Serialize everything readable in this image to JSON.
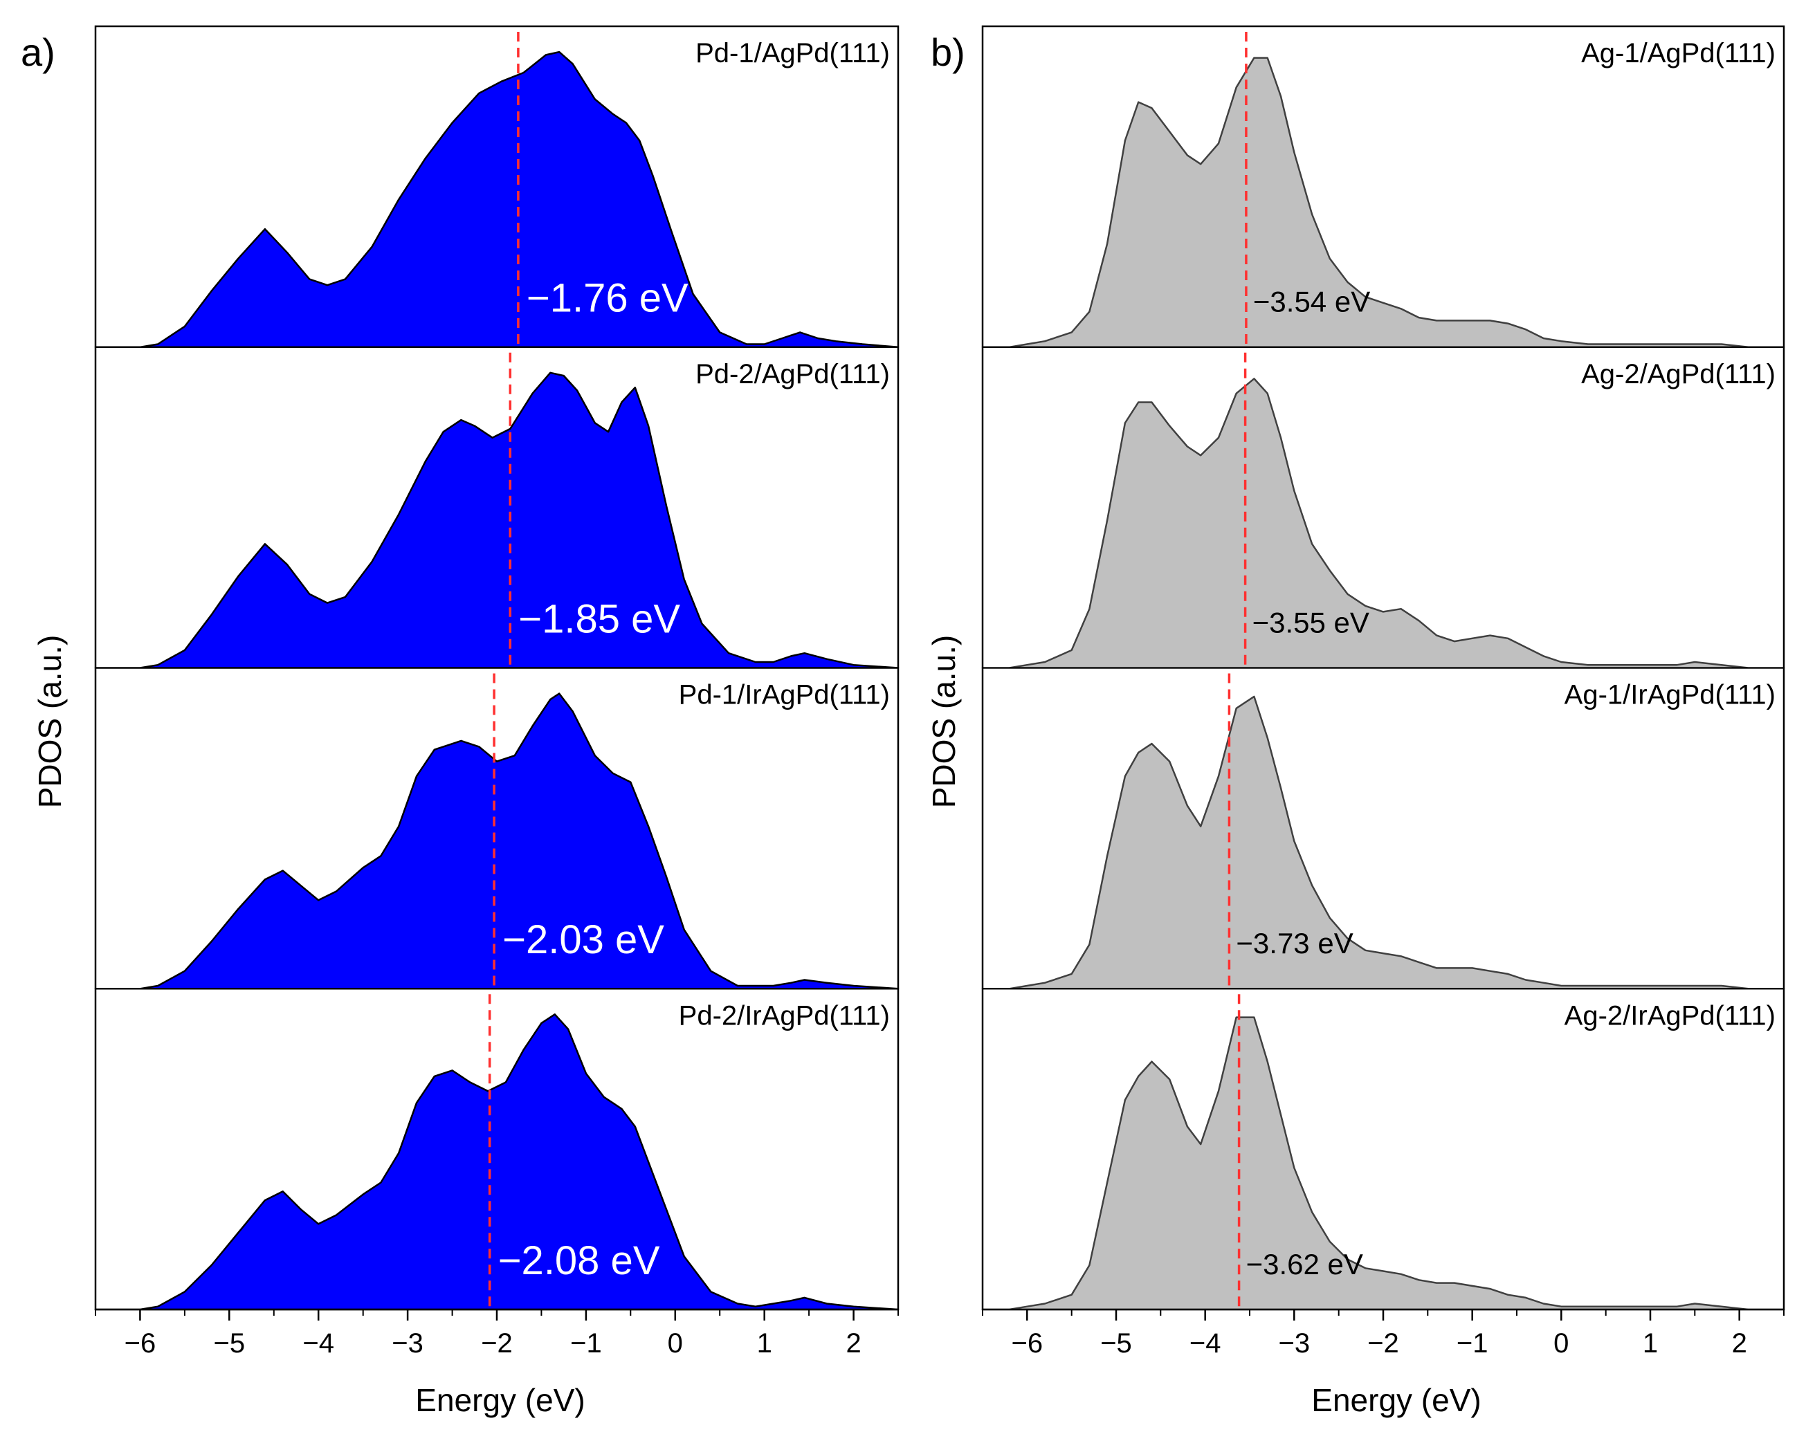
{
  "figure": {
    "panel_a_letter": "a)",
    "panel_b_letter": "b)"
  },
  "chart_data": [
    {
      "type": "area",
      "panel": "a",
      "title": "a)",
      "xlabel": "Energy (eV)",
      "ylabel": "PDOS (a.u.)",
      "xlim": [
        -6.5,
        2.5
      ],
      "xticks": [
        -6,
        -5,
        -4,
        -3,
        -2,
        -1,
        0,
        1,
        2
      ],
      "xtick_labels": [
        "−6",
        "−5",
        "−4",
        "−3",
        "−2",
        "−1",
        "0",
        "1",
        "2"
      ],
      "ylim": [
        0,
        1
      ],
      "fill_color": "#0000ff",
      "stroke_color": "#000000",
      "dashed_line_color": "#ff3030",
      "series": [
        {
          "name": "Pd-1/AgPd(111)",
          "d_band_center": -1.76,
          "annotation": "−1.76 eV",
          "x": [
            -6.5,
            -6.0,
            -5.8,
            -5.5,
            -5.2,
            -4.9,
            -4.6,
            -4.35,
            -4.1,
            -3.9,
            -3.7,
            -3.4,
            -3.1,
            -2.8,
            -2.5,
            -2.2,
            -1.95,
            -1.7,
            -1.45,
            -1.3,
            -1.15,
            -0.9,
            -0.7,
            -0.55,
            -0.4,
            -0.25,
            -0.05,
            0.2,
            0.5,
            0.8,
            1.0,
            1.2,
            1.4,
            1.6,
            1.8,
            2.1,
            2.5
          ],
          "y": [
            0.0,
            0.0,
            0.01,
            0.07,
            0.19,
            0.3,
            0.4,
            0.32,
            0.23,
            0.21,
            0.23,
            0.34,
            0.5,
            0.64,
            0.76,
            0.86,
            0.9,
            0.93,
            0.99,
            1.0,
            0.96,
            0.84,
            0.79,
            0.76,
            0.7,
            0.58,
            0.4,
            0.18,
            0.05,
            0.01,
            0.01,
            0.03,
            0.05,
            0.03,
            0.02,
            0.01,
            0.0
          ]
        },
        {
          "name": "Pd-2/AgPd(111)",
          "d_band_center": -1.85,
          "annotation": "−1.85 eV",
          "x": [
            -6.5,
            -6.0,
            -5.8,
            -5.5,
            -5.2,
            -4.9,
            -4.6,
            -4.35,
            -4.1,
            -3.9,
            -3.7,
            -3.4,
            -3.1,
            -2.8,
            -2.6,
            -2.4,
            -2.25,
            -2.05,
            -1.85,
            -1.6,
            -1.4,
            -1.25,
            -1.1,
            -0.9,
            -0.75,
            -0.6,
            -0.45,
            -0.3,
            -0.1,
            0.1,
            0.3,
            0.6,
            0.9,
            1.1,
            1.3,
            1.45,
            1.7,
            2.0,
            2.5
          ],
          "y": [
            0.0,
            0.0,
            0.01,
            0.06,
            0.18,
            0.31,
            0.42,
            0.35,
            0.25,
            0.22,
            0.24,
            0.36,
            0.52,
            0.7,
            0.8,
            0.84,
            0.82,
            0.78,
            0.81,
            0.93,
            1.0,
            0.99,
            0.94,
            0.83,
            0.8,
            0.9,
            0.95,
            0.82,
            0.55,
            0.3,
            0.15,
            0.05,
            0.02,
            0.02,
            0.04,
            0.05,
            0.03,
            0.01,
            0.0
          ]
        },
        {
          "name": "Pd-1/IrAgPd(111)",
          "d_band_center": -2.03,
          "annotation": "−2.03 eV",
          "x": [
            -6.5,
            -6.0,
            -5.8,
            -5.5,
            -5.2,
            -4.9,
            -4.6,
            -4.4,
            -4.2,
            -4.0,
            -3.8,
            -3.5,
            -3.3,
            -3.1,
            -2.9,
            -2.7,
            -2.4,
            -2.2,
            -2.0,
            -1.8,
            -1.6,
            -1.4,
            -1.3,
            -1.15,
            -0.9,
            -0.7,
            -0.5,
            -0.3,
            -0.1,
            0.1,
            0.4,
            0.7,
            0.9,
            1.1,
            1.3,
            1.45,
            1.7,
            2.0,
            2.5
          ],
          "y": [
            0.0,
            0.0,
            0.01,
            0.06,
            0.16,
            0.27,
            0.37,
            0.4,
            0.35,
            0.3,
            0.33,
            0.41,
            0.45,
            0.55,
            0.72,
            0.81,
            0.84,
            0.82,
            0.77,
            0.79,
            0.89,
            0.98,
            1.0,
            0.94,
            0.79,
            0.73,
            0.7,
            0.55,
            0.38,
            0.2,
            0.06,
            0.01,
            0.01,
            0.01,
            0.02,
            0.03,
            0.02,
            0.01,
            0.0
          ]
        },
        {
          "name": "Pd-2/IrAgPd(111)",
          "d_band_center": -2.08,
          "annotation": "−2.08 eV",
          "x": [
            -6.5,
            -6.0,
            -5.8,
            -5.5,
            -5.2,
            -4.9,
            -4.6,
            -4.4,
            -4.2,
            -4.0,
            -3.8,
            -3.5,
            -3.3,
            -3.1,
            -2.9,
            -2.7,
            -2.5,
            -2.3,
            -2.1,
            -1.9,
            -1.7,
            -1.5,
            -1.35,
            -1.2,
            -1.0,
            -0.8,
            -0.6,
            -0.45,
            -0.3,
            -0.1,
            0.1,
            0.4,
            0.7,
            0.9,
            1.1,
            1.3,
            1.45,
            1.7,
            2.0,
            2.5
          ],
          "y": [
            0.0,
            0.0,
            0.01,
            0.06,
            0.15,
            0.26,
            0.37,
            0.4,
            0.34,
            0.29,
            0.32,
            0.39,
            0.43,
            0.53,
            0.7,
            0.79,
            0.81,
            0.77,
            0.74,
            0.77,
            0.88,
            0.97,
            1.0,
            0.95,
            0.8,
            0.72,
            0.68,
            0.62,
            0.5,
            0.34,
            0.18,
            0.06,
            0.02,
            0.01,
            0.02,
            0.03,
            0.04,
            0.02,
            0.01,
            0.0
          ]
        }
      ]
    },
    {
      "type": "area",
      "panel": "b",
      "title": "b)",
      "xlabel": "Energy (eV)",
      "ylabel": "PDOS (a.u.)",
      "xlim": [
        -6.5,
        2.5
      ],
      "xticks": [
        -6,
        -5,
        -4,
        -3,
        -2,
        -1,
        0,
        1,
        2
      ],
      "xtick_labels": [
        "−6",
        "−5",
        "−4",
        "−3",
        "−2",
        "−1",
        "0",
        "1",
        "2"
      ],
      "ylim": [
        0,
        1
      ],
      "fill_color": "#c0c0c0",
      "stroke_color": "#404040",
      "dashed_line_color": "#ff3030",
      "series": [
        {
          "name": "Ag-1/AgPd(111)",
          "d_band_center": -3.54,
          "annotation": "−3.54 eV",
          "x": [
            -6.5,
            -6.2,
            -6.0,
            -5.8,
            -5.5,
            -5.3,
            -5.1,
            -4.9,
            -4.75,
            -4.6,
            -4.4,
            -4.2,
            -4.05,
            -3.85,
            -3.65,
            -3.45,
            -3.3,
            -3.15,
            -3.0,
            -2.8,
            -2.6,
            -2.4,
            -2.2,
            -2.0,
            -1.8,
            -1.6,
            -1.4,
            -1.2,
            -1.0,
            -0.8,
            -0.6,
            -0.4,
            -0.2,
            0.0,
            0.3,
            0.6,
            0.9,
            1.1,
            1.3,
            1.5,
            1.8,
            2.1,
            2.5
          ],
          "y": [
            0.0,
            0.0,
            0.01,
            0.02,
            0.05,
            0.12,
            0.35,
            0.7,
            0.83,
            0.81,
            0.73,
            0.65,
            0.62,
            0.69,
            0.88,
            0.98,
            0.98,
            0.85,
            0.66,
            0.45,
            0.3,
            0.22,
            0.17,
            0.15,
            0.13,
            0.1,
            0.09,
            0.09,
            0.09,
            0.09,
            0.08,
            0.06,
            0.03,
            0.02,
            0.01,
            0.01,
            0.01,
            0.01,
            0.01,
            0.01,
            0.01,
            0.0,
            0.0
          ]
        },
        {
          "name": "Ag-2/AgPd(111)",
          "d_band_center": -3.55,
          "annotation": "−3.55 eV",
          "x": [
            -6.5,
            -6.2,
            -6.0,
            -5.8,
            -5.5,
            -5.3,
            -5.1,
            -4.9,
            -4.75,
            -4.6,
            -4.4,
            -4.2,
            -4.05,
            -3.85,
            -3.65,
            -3.45,
            -3.3,
            -3.15,
            -3.0,
            -2.8,
            -2.6,
            -2.4,
            -2.2,
            -2.0,
            -1.8,
            -1.6,
            -1.4,
            -1.2,
            -1.0,
            -0.8,
            -0.6,
            -0.4,
            -0.2,
            0.0,
            0.3,
            0.6,
            0.9,
            1.1,
            1.3,
            1.5,
            1.8,
            2.1,
            2.5
          ],
          "y": [
            0.0,
            0.0,
            0.01,
            0.02,
            0.06,
            0.2,
            0.5,
            0.83,
            0.9,
            0.9,
            0.82,
            0.75,
            0.72,
            0.78,
            0.93,
            0.98,
            0.93,
            0.78,
            0.6,
            0.42,
            0.33,
            0.25,
            0.21,
            0.19,
            0.2,
            0.16,
            0.11,
            0.09,
            0.1,
            0.11,
            0.1,
            0.07,
            0.04,
            0.02,
            0.01,
            0.01,
            0.01,
            0.01,
            0.01,
            0.02,
            0.01,
            0.0,
            0.0
          ]
        },
        {
          "name": "Ag-1/IrAgPd(111)",
          "d_band_center": -3.73,
          "annotation": "−3.73 eV",
          "x": [
            -6.5,
            -6.2,
            -6.0,
            -5.8,
            -5.5,
            -5.3,
            -5.1,
            -4.9,
            -4.75,
            -4.6,
            -4.4,
            -4.2,
            -4.05,
            -3.85,
            -3.65,
            -3.45,
            -3.3,
            -3.15,
            -3.0,
            -2.8,
            -2.6,
            -2.4,
            -2.2,
            -2.0,
            -1.8,
            -1.6,
            -1.4,
            -1.2,
            -1.0,
            -0.8,
            -0.6,
            -0.4,
            -0.2,
            0.0,
            0.3,
            0.6,
            0.9,
            1.1,
            1.3,
            1.5,
            1.8,
            2.1,
            2.5
          ],
          "y": [
            0.0,
            0.0,
            0.01,
            0.02,
            0.05,
            0.15,
            0.45,
            0.72,
            0.8,
            0.83,
            0.77,
            0.62,
            0.55,
            0.72,
            0.95,
            0.99,
            0.85,
            0.68,
            0.5,
            0.35,
            0.24,
            0.17,
            0.13,
            0.12,
            0.11,
            0.09,
            0.07,
            0.07,
            0.07,
            0.06,
            0.05,
            0.03,
            0.02,
            0.01,
            0.01,
            0.01,
            0.01,
            0.01,
            0.01,
            0.01,
            0.01,
            0.0,
            0.0
          ]
        },
        {
          "name": "Ag-2/IrAgPd(111)",
          "d_band_center": -3.62,
          "annotation": "−3.62 eV",
          "x": [
            -6.5,
            -6.2,
            -6.0,
            -5.8,
            -5.5,
            -5.3,
            -5.1,
            -4.9,
            -4.75,
            -4.6,
            -4.4,
            -4.2,
            -4.05,
            -3.85,
            -3.65,
            -3.45,
            -3.3,
            -3.15,
            -3.0,
            -2.8,
            -2.6,
            -2.4,
            -2.2,
            -2.0,
            -1.8,
            -1.6,
            -1.4,
            -1.2,
            -1.0,
            -0.8,
            -0.6,
            -0.4,
            -0.2,
            0.0,
            0.3,
            0.6,
            0.9,
            1.1,
            1.3,
            1.5,
            1.8,
            2.1,
            2.5
          ],
          "y": [
            0.0,
            0.0,
            0.01,
            0.02,
            0.05,
            0.15,
            0.43,
            0.71,
            0.79,
            0.84,
            0.78,
            0.62,
            0.56,
            0.74,
            0.99,
            0.99,
            0.84,
            0.66,
            0.48,
            0.33,
            0.23,
            0.17,
            0.14,
            0.13,
            0.12,
            0.1,
            0.09,
            0.09,
            0.08,
            0.07,
            0.05,
            0.04,
            0.02,
            0.01,
            0.01,
            0.01,
            0.01,
            0.01,
            0.01,
            0.02,
            0.01,
            0.0,
            0.0
          ]
        }
      ]
    }
  ]
}
